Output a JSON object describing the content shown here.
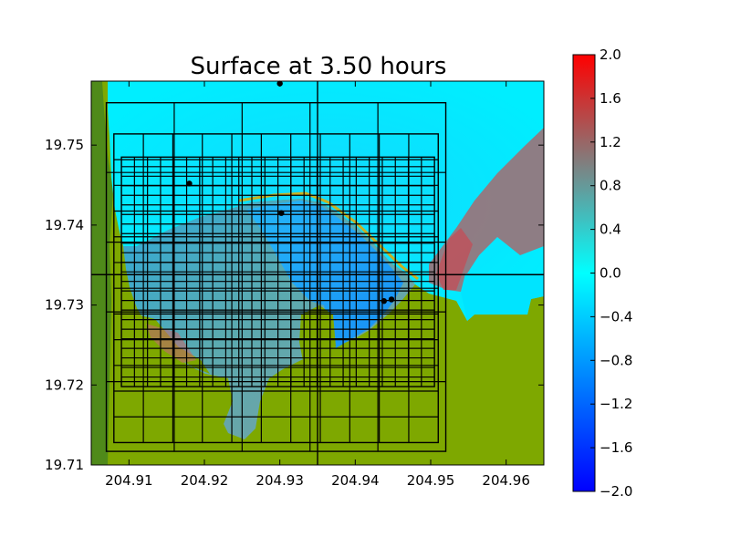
{
  "chart_data": {
    "type": "heatmap",
    "title": "Surface at 3.50 hours",
    "xlabel": "",
    "ylabel": "",
    "xlim": [
      204.905,
      204.965
    ],
    "ylim": [
      19.71,
      19.758
    ],
    "x_ticks": [
      "204.91",
      "204.92",
      "204.93",
      "204.94",
      "204.95",
      "204.96"
    ],
    "x_tick_values": [
      204.91,
      204.92,
      204.93,
      204.94,
      204.95,
      204.96
    ],
    "y_ticks": [
      "19.71",
      "19.72",
      "19.73",
      "19.74",
      "19.75"
    ],
    "y_tick_values": [
      19.71,
      19.72,
      19.73,
      19.74,
      19.75
    ],
    "colorbar": {
      "range": [
        -2.0,
        2.0
      ],
      "ticks": [
        "2.0",
        "1.6",
        "1.2",
        "0.8",
        "0.4",
        "0.0",
        "−0.4",
        "−0.8",
        "−1.2",
        "−1.6",
        "−2.0"
      ],
      "tick_values": [
        2.0,
        1.6,
        1.2,
        0.8,
        0.4,
        0.0,
        -0.4,
        -0.8,
        -1.2,
        -1.6,
        -2.0
      ],
      "colors": [
        "#0000ff",
        "#00ffff",
        "#ff0000"
      ]
    },
    "colors": {
      "land": "#7ea800",
      "land_dark": "#4f8a1a",
      "water_zero": "#00eeff",
      "water_low": "#1aa6ff",
      "water_mid": "#6aa9a9",
      "water_high": "#c0505a"
    },
    "crosshair": {
      "x": 204.935,
      "y": 19.7338
    },
    "gauges": [
      {
        "x": 204.93,
        "y": 19.7577
      },
      {
        "x": 204.918,
        "y": 19.7452
      },
      {
        "x": 204.9302,
        "y": 19.7415
      },
      {
        "x": 204.9438,
        "y": 19.7305
      },
      {
        "x": 204.9448,
        "y": 19.7307
      }
    ],
    "grid_levels": [
      {
        "xlim": [
          204.907,
          204.952
        ],
        "ylim": [
          19.7117,
          19.7553
        ],
        "nx": 5,
        "ny": 5
      },
      {
        "xlim": [
          204.908,
          204.951
        ],
        "ylim": [
          19.7128,
          19.7514
        ],
        "nx": 11,
        "ny": 12
      },
      {
        "xlim": [
          204.909,
          204.9505
        ],
        "ylim": [
          19.7198,
          19.7485
        ],
        "nx": 24,
        "ny": 24
      }
    ]
  }
}
